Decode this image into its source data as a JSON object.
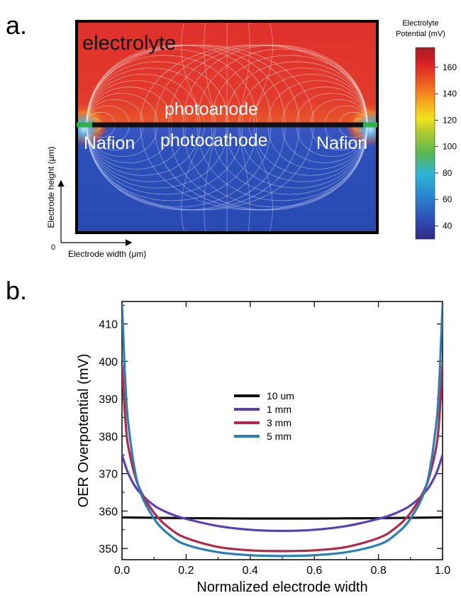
{
  "chart_data": [
    {
      "type": "heatmap",
      "panel_label": "a.",
      "labels": {
        "electrolyte": "electrolyte",
        "photoanode": "photoanode",
        "photocathode": "photocathode",
        "nafion_left": "Nafion",
        "nafion_right": "Nafion"
      },
      "xlabel": "Electrode width (μm)",
      "ylabel": "Electrode height (μm)",
      "origin_label": "0",
      "colorbar": {
        "title_line1": "Electrolyte",
        "title_line2": "Potential (mV)",
        "ticks": [
          40,
          60,
          80,
          100,
          120,
          140,
          160
        ],
        "range": [
          30,
          175
        ],
        "colors": [
          "#2e2a82",
          "#2e4fb5",
          "#2a83cf",
          "#2fb5d5",
          "#5ab84f",
          "#a9c932",
          "#f2e21e",
          "#f5a21d",
          "#ed5b22",
          "#d81f26",
          "#a61d24"
        ]
      },
      "colors": {
        "top_region": "#e0312c",
        "bottom_region": "#2c4fb8",
        "electrode": "#111111",
        "nafion": "#2bb34a"
      }
    },
    {
      "type": "line",
      "panel_label": "b.",
      "xlabel": "Normalized electrode width",
      "ylabel": "OER Overpotential (mV)",
      "xlim": [
        0,
        1
      ],
      "ylim": [
        347,
        416
      ],
      "xticks": [
        "0.0",
        "0.2",
        "0.4",
        "0.6",
        "0.8",
        "1.0"
      ],
      "yticks": [
        "350",
        "360",
        "370",
        "380",
        "390",
        "400",
        "410"
      ],
      "grid": false,
      "legend_position": "center",
      "series": [
        {
          "name": "10 um",
          "color": "#111111",
          "x": [
            0.0,
            0.1,
            0.2,
            0.3,
            0.4,
            0.5,
            0.6,
            0.7,
            0.8,
            0.9,
            1.0
          ],
          "y": [
            358.3,
            358.2,
            358.1,
            358.05,
            358.0,
            358.0,
            358.0,
            358.05,
            358.1,
            358.2,
            358.3
          ]
        },
        {
          "name": "1 mm",
          "color": "#5b3fb5",
          "x": [
            0.0,
            0.02,
            0.05,
            0.1,
            0.15,
            0.2,
            0.3,
            0.4,
            0.5,
            0.6,
            0.7,
            0.8,
            0.85,
            0.9,
            0.95,
            0.98,
            1.0
          ],
          "y": [
            375.0,
            370.0,
            365.5,
            361.5,
            359.3,
            357.9,
            356.0,
            355.0,
            354.7,
            355.0,
            356.0,
            357.9,
            359.3,
            361.5,
            365.5,
            370.0,
            375.0
          ]
        },
        {
          "name": "3 mm",
          "color": "#b02a4a",
          "x": [
            0.0,
            0.01,
            0.02,
            0.05,
            0.1,
            0.15,
            0.2,
            0.3,
            0.4,
            0.5,
            0.6,
            0.7,
            0.8,
            0.85,
            0.9,
            0.95,
            0.98,
            0.99,
            1.0
          ],
          "y": [
            399.0,
            385.0,
            377.0,
            367.0,
            359.5,
            355.3,
            352.8,
            350.4,
            349.5,
            349.3,
            349.5,
            350.4,
            352.8,
            355.3,
            359.5,
            367.0,
            377.0,
            385.0,
            399.0
          ]
        },
        {
          "name": "5 mm",
          "color": "#2a7fb5",
          "x": [
            0.0,
            0.005,
            0.01,
            0.02,
            0.05,
            0.1,
            0.15,
            0.2,
            0.3,
            0.4,
            0.5,
            0.6,
            0.7,
            0.8,
            0.85,
            0.9,
            0.95,
            0.98,
            0.99,
            0.995,
            1.0
          ],
          "y": [
            415.0,
            405.0,
            395.0,
            383.0,
            367.0,
            358.0,
            353.5,
            351.0,
            349.0,
            348.2,
            348.0,
            348.2,
            349.0,
            351.0,
            353.5,
            358.0,
            367.0,
            383.0,
            395.0,
            405.0,
            415.0
          ]
        }
      ]
    }
  ]
}
